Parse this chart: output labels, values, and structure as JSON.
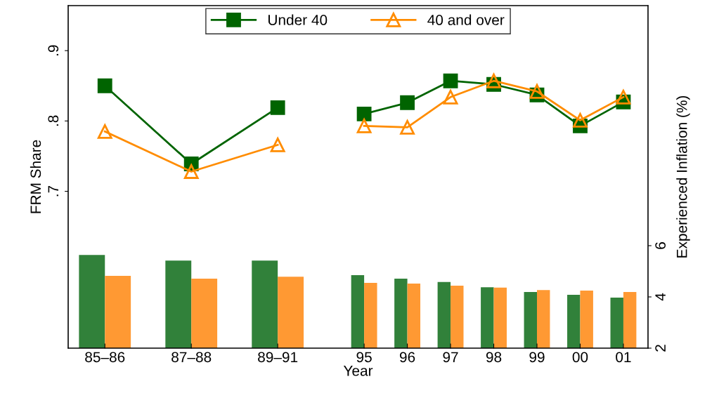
{
  "chart_data": {
    "type": "line",
    "xlabel": "Year",
    "ylabel": "FRM Share",
    "y2label": "Experienced Inflation (%)",
    "categories": [
      "85–86",
      null,
      "87–88",
      null,
      "89–91",
      null,
      "95",
      "96",
      "97",
      "98",
      "99",
      "00",
      "01"
    ],
    "ylim": [
      0.477,
      0.964
    ],
    "yticks": [
      {
        "value": 0.7,
        "label": ".7"
      },
      {
        "value": 0.8,
        "label": ".8"
      },
      {
        "value": 0.9,
        "label": ".9"
      }
    ],
    "y2lim": [
      2,
      15.37
    ],
    "y2ticks": [
      2,
      4,
      6
    ],
    "grid": false,
    "legend": "top",
    "series": [
      {
        "type": "bar",
        "axis": "y2",
        "color": "#31813a",
        "values": [
          5.64,
          null,
          5.42,
          null,
          5.42,
          null,
          4.85,
          4.71,
          4.58,
          4.38,
          4.19,
          4.08,
          3.97
        ]
      },
      {
        "type": "bar",
        "axis": "y2",
        "color": "#ff9933",
        "values": [
          4.82,
          null,
          4.71,
          null,
          4.79,
          null,
          4.55,
          4.52,
          4.44,
          4.36,
          4.27,
          4.25,
          4.19
        ]
      },
      {
        "name": "Under 40",
        "color": "#006400",
        "marker": "square",
        "values": [
          0.85,
          null,
          0.739,
          null,
          0.819,
          null,
          null,
          null,
          null,
          null,
          null,
          null,
          null
        ]
      },
      {
        "name": "40 and over",
        "color": "#ff8c00",
        "marker": "triangle",
        "values": [
          0.785,
          null,
          0.728,
          null,
          0.766,
          null,
          null,
          null,
          null,
          null,
          null,
          null,
          null
        ]
      },
      {
        "color": "#006400",
        "marker": "square",
        "values": [
          null,
          null,
          null,
          null,
          null,
          null,
          0.81,
          0.826,
          0.857,
          0.852,
          0.837,
          0.793,
          0.827
        ]
      },
      {
        "color": "#ff8c00",
        "marker": "triangle",
        "values": [
          null,
          null,
          null,
          null,
          null,
          null,
          0.793,
          0.791,
          0.834,
          0.857,
          0.842,
          0.801,
          0.834
        ]
      }
    ]
  }
}
